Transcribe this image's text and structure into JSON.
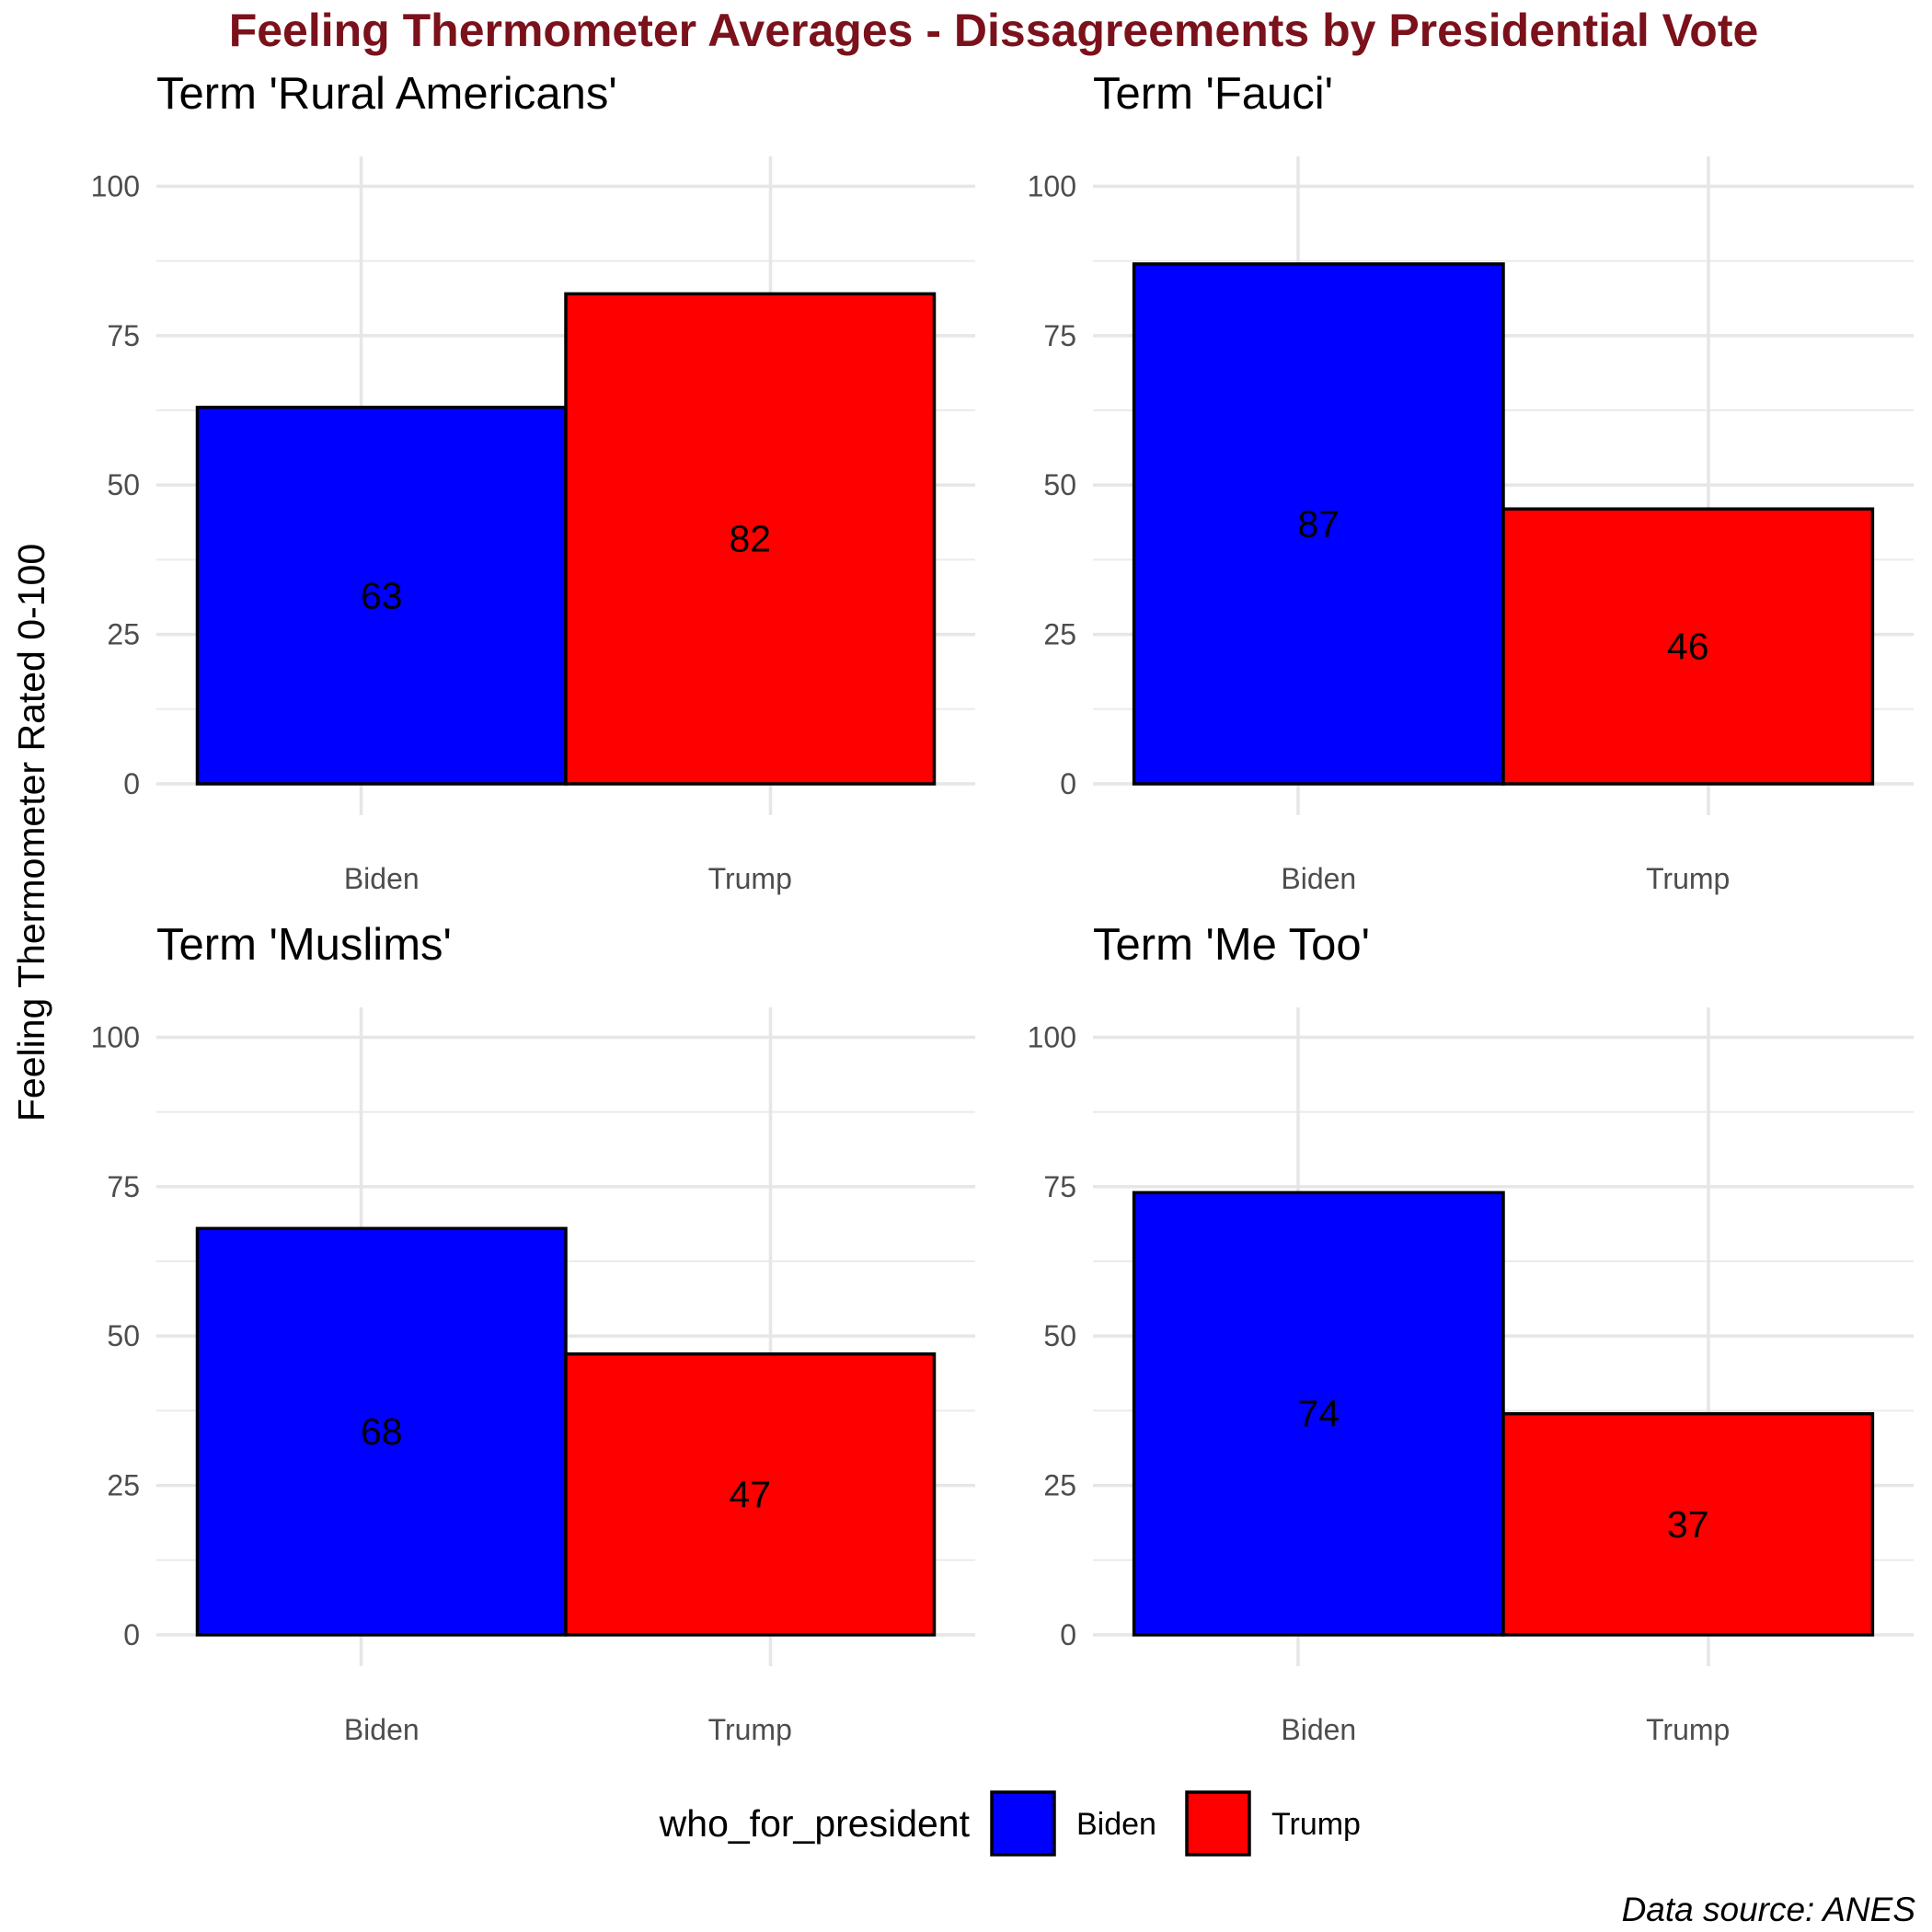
{
  "chart_data": {
    "type": "bar",
    "title": "Feeling Thermometer Averages - Dissagreements by Presidential Vote",
    "ylabel": "Feeling Thermometer Rated 0-100",
    "xlabel": "",
    "ylim": [
      0,
      105
    ],
    "yticks": [
      0,
      25,
      50,
      75,
      100
    ],
    "grid": true,
    "categories": [
      "Biden",
      "Trump"
    ],
    "colors": {
      "Biden": "#0000ff",
      "Trump": "#ff0000"
    },
    "legend": {
      "title": "who_for_president",
      "position": "bottom",
      "entries": [
        "Biden",
        "Trump"
      ]
    },
    "caption": "Data source: ANES",
    "facets": [
      {
        "title": "Term 'Rural Americans'",
        "values": [
          63,
          82
        ]
      },
      {
        "title": "Term 'Fauci'",
        "values": [
          87,
          46
        ]
      },
      {
        "title": "Term 'Muslims'",
        "values": [
          68,
          47
        ]
      },
      {
        "title": "Term 'Me Too'",
        "values": [
          74,
          37
        ]
      }
    ]
  }
}
